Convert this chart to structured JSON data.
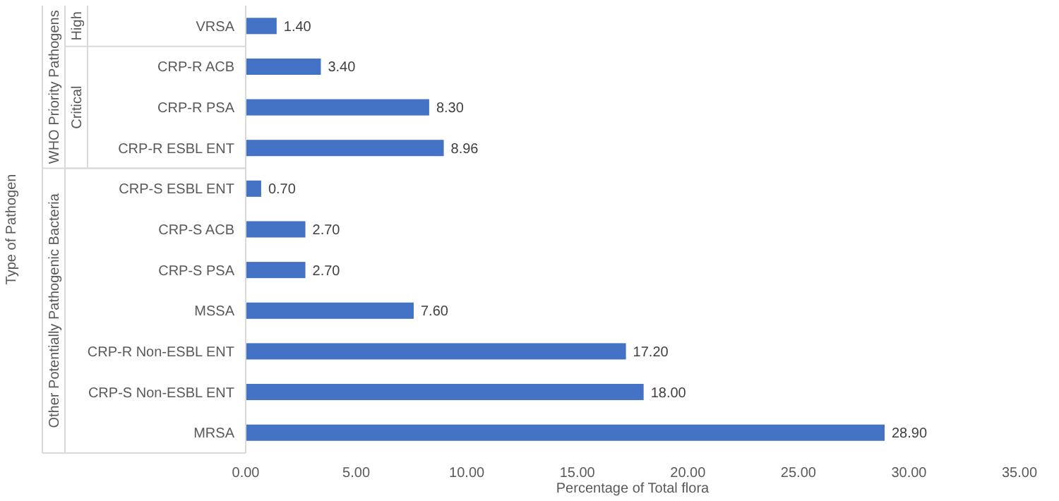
{
  "chart_data": {
    "type": "bar",
    "orientation": "horizontal",
    "xlabel": "Percentage of Total flora",
    "ylabel": "Type of Pathogen",
    "categories": [
      "VRSA",
      "CRP-R ACB",
      "CRP-R PSA",
      "CRP-R ESBL ENT",
      "CRP-S ESBL ENT",
      "CRP-S ACB",
      "CRP-S PSA",
      "MSSA",
      "CRP-R Non-ESBL ENT",
      "CRP-S Non-ESBL ENT",
      "MRSA"
    ],
    "values": [
      1.4,
      3.4,
      8.3,
      8.96,
      0.7,
      2.7,
      2.7,
      7.6,
      17.2,
      18.0,
      28.9
    ],
    "value_labels": [
      "1.40",
      "3.40",
      "8.30",
      "8.96",
      "0.70",
      "2.70",
      "2.70",
      "7.60",
      "17.20",
      "18.00",
      "28.90"
    ],
    "color": "#4472c4",
    "xlim": [
      0,
      35
    ],
    "xticks": [
      {
        "value": 0,
        "label": "0.00"
      },
      {
        "value": 5,
        "label": "5.00"
      },
      {
        "value": 10,
        "label": "10.00"
      },
      {
        "value": 15,
        "label": "15.00"
      },
      {
        "value": 20,
        "label": "20.00"
      },
      {
        "value": 25,
        "label": "25.00"
      },
      {
        "value": 30,
        "label": "30.00"
      },
      {
        "value": 35,
        "label": "35.00"
      }
    ],
    "annotations": [
      "High",
      "Critical",
      "WHO Priority Pathogens",
      "Other Potentially Pathogenic Bacteria"
    ],
    "grid": false
  }
}
